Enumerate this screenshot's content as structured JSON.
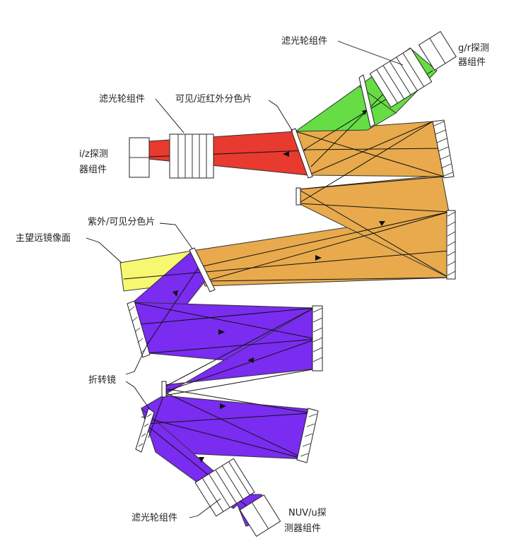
{
  "colors": {
    "green": "#66dd44",
    "red": "#e83a2e",
    "orange": "#e8aa4c",
    "yellow": "#f7f771",
    "purple": "#7a2cf0",
    "line": "#222222"
  },
  "labels": {
    "filter_wheel_top": "滤光轮组件",
    "gr_detector_1": "g/r探测",
    "gr_detector_2": "器组件",
    "filter_wheel_left": "滤光轮组件",
    "vis_nir_dichroic": "可见/近红外分色片",
    "iz_detector_1": "i/z探测",
    "iz_detector_2": "器组件",
    "uv_vis_dichroic": "紫外/可见分色片",
    "main_telescope_image_plane": "主望远镜像面",
    "fold_mirror": "折转镜",
    "filter_wheel_bottom": "滤光轮组件",
    "nuv_detector_1": "NUV/u探",
    "nuv_detector_2": "测器组件"
  },
  "icons": [
    "arrow-icon",
    "mirror-icon",
    "filter-wheel-icon",
    "detector-icon"
  ]
}
